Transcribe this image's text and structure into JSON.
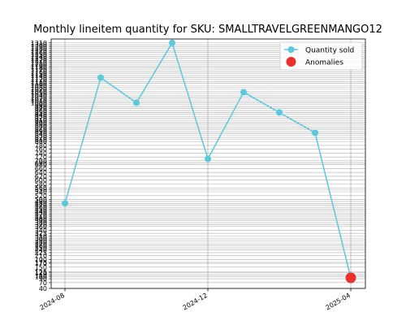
{
  "chart_data": {
    "type": "line",
    "title": "Monthly lineitem quantity for SKU: SMALLTRAVELGREENMANGO12",
    "xlabel": "",
    "ylabel": "",
    "x": [
      "2024-08",
      "2024-09",
      "2024-10",
      "2024-11",
      "2024-12",
      "2025-01",
      "2025-02",
      "2025-03",
      "2025-04"
    ],
    "x_tick_labels": [
      "2024-08",
      "2024-12",
      "2025-04"
    ],
    "series": [
      {
        "name": "Quantity sold",
        "color": "#5bc8e0",
        "values": [
          480,
          1130,
          1000,
          1310,
          710,
          1055,
          950,
          845,
          95
        ]
      },
      {
        "name": "Anomalies",
        "color": "#e8302c",
        "points": [
          {
            "x": "2025-04",
            "y": 95
          }
        ]
      }
    ],
    "yticks": [
      40,
      70,
      90,
      100,
      110,
      120,
      125,
      150,
      170,
      175,
      190,
      210,
      225,
      240,
      250,
      260,
      270,
      280,
      290,
      300,
      310,
      325,
      340,
      360,
      370,
      380,
      390,
      400,
      410,
      420,
      430,
      440,
      450,
      460,
      470,
      480,
      490,
      500,
      520,
      540,
      550,
      560,
      580,
      600,
      620,
      640,
      660,
      680,
      690,
      700,
      720,
      740,
      760,
      780,
      800,
      810,
      820,
      830,
      840,
      850,
      860,
      870,
      880,
      890,
      900,
      910,
      920,
      930,
      940,
      950,
      960,
      970,
      980,
      990,
      1000,
      1010,
      1020,
      1030,
      1040,
      1050,
      1060,
      1070,
      1080,
      1090,
      1100,
      1110,
      1120,
      1130,
      1140,
      1150,
      1160,
      1170,
      1180,
      1190,
      1200,
      1210,
      1220,
      1230,
      1240,
      1250,
      1260,
      1270,
      1280,
      1290,
      1300,
      1310
    ],
    "ylim": [
      40,
      1330
    ],
    "grid": true,
    "legend_position": "upper-right"
  }
}
